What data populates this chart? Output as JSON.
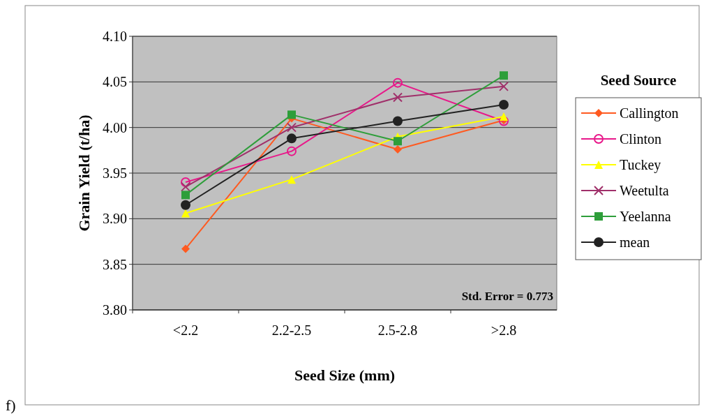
{
  "chart_data": {
    "type": "line",
    "xlabel": "Seed Size (mm)",
    "ylabel": "Grain Yield (t/ha)",
    "legend_title": "Seed Source",
    "categories": [
      "<2.2",
      "2.2-2.5",
      "2.5-2.8",
      ">2.8"
    ],
    "series": [
      {
        "name": "Callington",
        "color": "#ff5a20",
        "marker": "diamond",
        "values": [
          3.867,
          4.01,
          3.976,
          4.008
        ]
      },
      {
        "name": "Clinton",
        "color": "#e8188a",
        "marker": "circle",
        "values": [
          3.94,
          3.974,
          4.049,
          4.007
        ]
      },
      {
        "name": "Tuckey",
        "color": "#ffff00",
        "marker": "triangle",
        "values": [
          3.906,
          3.943,
          3.99,
          4.012
        ]
      },
      {
        "name": "Weetulta",
        "color": "#a0306a",
        "marker": "cross",
        "values": [
          3.935,
          4.0,
          4.033,
          4.045
        ]
      },
      {
        "name": "Yeelanna",
        "color": "#2e9e3a",
        "marker": "square",
        "values": [
          3.926,
          4.014,
          3.985,
          4.057
        ]
      },
      {
        "name": "mean",
        "color": "#222222",
        "marker": "circle",
        "values": [
          3.915,
          3.988,
          4.007,
          4.025
        ]
      }
    ],
    "ylim": [
      3.8,
      4.1
    ],
    "yticks": [
      {
        "value": 3.8,
        "label": "3.80"
      },
      {
        "value": 3.85,
        "label": "3.85"
      },
      {
        "value": 3.9,
        "label": "3.90"
      },
      {
        "value": 3.95,
        "label": "3.95"
      },
      {
        "value": 4.0,
        "label": "4.00"
      },
      {
        "value": 4.05,
        "label": "4.05"
      },
      {
        "value": 4.1,
        "label": "4.10"
      }
    ],
    "grid": "y",
    "legend": "right",
    "annotations": [
      "Std. Error = 0.773",
      "f)"
    ]
  }
}
